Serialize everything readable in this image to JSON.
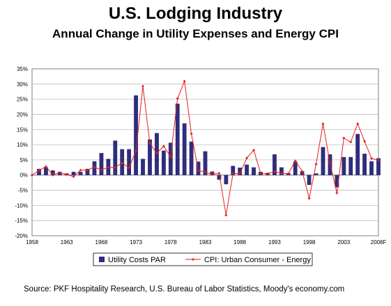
{
  "chart_data": {
    "type": "bar",
    "title": "U.S. Lodging Industry",
    "subtitle": "Annual Change in Utility Expenses and Energy CPI",
    "x": [
      1958,
      1959,
      1960,
      1961,
      1962,
      1963,
      1964,
      1965,
      1966,
      1967,
      1968,
      1969,
      1970,
      1971,
      1972,
      1973,
      1974,
      1975,
      1976,
      1977,
      1978,
      1979,
      1980,
      1981,
      1982,
      1983,
      1984,
      1985,
      1986,
      1987,
      1988,
      1989,
      1990,
      1991,
      1992,
      1993,
      1994,
      1995,
      1996,
      1997,
      1998,
      1999,
      2000,
      2001,
      2002,
      2003,
      2004,
      2005,
      2006,
      2007,
      2008
    ],
    "x_tick_labels": [
      "1958",
      "1963",
      "1968",
      "1973",
      "1978",
      "1983",
      "1988",
      "1993",
      "1998",
      "2003",
      "2008F"
    ],
    "ylim": [
      -20,
      35
    ],
    "y_ticks": [
      "-20%",
      "-15%",
      "-10%",
      "-5%",
      "0%",
      "5%",
      "10%",
      "15%",
      "20%",
      "25%",
      "30%",
      "35%"
    ],
    "series": [
      {
        "name": "Utility Costs PAR",
        "type": "bar",
        "color": "#2e2e7f",
        "values": [
          0,
          2,
          2.5,
          1.5,
          1,
          0.5,
          1,
          1,
          2,
          4.5,
          7.2,
          5.3,
          11.3,
          8.5,
          8.5,
          26.2,
          5.3,
          11.7,
          13.8,
          8,
          10.6,
          23.5,
          17,
          11,
          4.4,
          7.8,
          1.1,
          -1.5,
          -3,
          3,
          2.4,
          3.4,
          2.5,
          1,
          0.5,
          6.8,
          2.5,
          0.6,
          4.4,
          1.2,
          -3.2,
          0.5,
          9.2,
          6.8,
          -4,
          5.9,
          5.9,
          13.5,
          7,
          4.5,
          5.5
        ]
      },
      {
        "name": "CPI: Urban Consumer - Energy",
        "type": "line",
        "color": "#e81c1c",
        "values": [
          0,
          1.5,
          2.8,
          0,
          0.8,
          0.2,
          -0.5,
          1.6,
          1.7,
          2.6,
          1.7,
          2.5,
          2.5,
          4,
          2.4,
          8,
          29.3,
          10.5,
          7.2,
          9.5,
          6.1,
          25.2,
          30.9,
          13.6,
          1.5,
          1,
          0.2,
          0.6,
          -13.2,
          0.5,
          0.5,
          5.6,
          8.2,
          0.5,
          0.5,
          1.2,
          0.5,
          0.5,
          4.7,
          1.2,
          -7.7,
          3.6,
          16.9,
          4,
          -5.9,
          12.2,
          10.9,
          16.9,
          11.1,
          5.5,
          4.9
        ]
      }
    ],
    "grid": "horizontal",
    "legend_position": "bottom"
  },
  "source": "Source: PKF Hospitality Research, U.S. Bureau of Labor Statistics, Moody's economy.com"
}
